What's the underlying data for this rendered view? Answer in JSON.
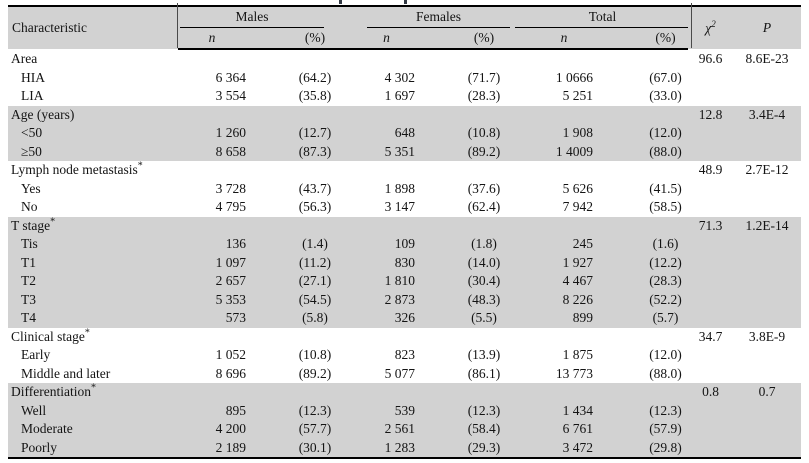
{
  "colors": {
    "band": "#d2d2d2",
    "rule": "#000000",
    "text": "#141414",
    "divider": "#4a4a4a"
  },
  "table": {
    "header": {
      "characteristic": "Characteristic",
      "groups": [
        {
          "label": "Males"
        },
        {
          "label": "Females"
        },
        {
          "label": "Total"
        }
      ],
      "sub_n": "n",
      "sub_pct": "(%)",
      "chi2_base": "χ",
      "chi2_sup": "2",
      "p_label": "P"
    },
    "sections": [
      {
        "id": "area",
        "label": "Area",
        "asterisk": false,
        "shaded": false,
        "chi2": "96.6",
        "p": "8.6E-23",
        "rows": [
          {
            "label": "HIA",
            "m_n": "6 364",
            "m_pct": "(64.2)",
            "f_n": "4 302",
            "f_pct": "(71.7)",
            "t_n": "1 0666",
            "t_pct": "(67.0)"
          },
          {
            "label": "LIA",
            "m_n": "3 554",
            "m_pct": "(35.8)",
            "f_n": "1 697",
            "f_pct": "(28.3)",
            "t_n": "5 251",
            "t_pct": "(33.0)"
          }
        ]
      },
      {
        "id": "age",
        "label": "Age (years)",
        "asterisk": false,
        "shaded": true,
        "chi2": "12.8",
        "p": "3.4E-4",
        "rows": [
          {
            "label": "<50",
            "m_n": "1 260",
            "m_pct": "(12.7)",
            "f_n": "648",
            "f_pct": "(10.8)",
            "t_n": "1 908",
            "t_pct": "(12.0)"
          },
          {
            "label": "≥50",
            "m_n": "8 658",
            "m_pct": "(87.3)",
            "f_n": "5 351",
            "f_pct": "(89.2)",
            "t_n": "1 4009",
            "t_pct": "(88.0)"
          }
        ]
      },
      {
        "id": "lymph-node-metastasis",
        "label": "Lymph node metastasis",
        "asterisk": true,
        "shaded": false,
        "chi2": "48.9",
        "p": "2.7E-12",
        "rows": [
          {
            "label": "Yes",
            "m_n": "3 728",
            "m_pct": "(43.7)",
            "f_n": "1 898",
            "f_pct": "(37.6)",
            "t_n": "5 626",
            "t_pct": "(41.5)"
          },
          {
            "label": "No",
            "m_n": "4 795",
            "m_pct": "(56.3)",
            "f_n": "3 147",
            "f_pct": "(62.4)",
            "t_n": "7 942",
            "t_pct": "(58.5)"
          }
        ]
      },
      {
        "id": "t-stage",
        "label": "T stage",
        "asterisk": true,
        "shaded": true,
        "chi2": "71.3",
        "p": "1.2E-14",
        "rows": [
          {
            "label": "Tis",
            "m_n": "136",
            "m_pct": "(1.4)",
            "f_n": "109",
            "f_pct": "(1.8)",
            "t_n": "245",
            "t_pct": "(1.6)"
          },
          {
            "label": "T1",
            "m_n": "1 097",
            "m_pct": "(11.2)",
            "f_n": "830",
            "f_pct": "(14.0)",
            "t_n": "1 927",
            "t_pct": "(12.2)"
          },
          {
            "label": "T2",
            "m_n": "2 657",
            "m_pct": "(27.1)",
            "f_n": "1 810",
            "f_pct": "(30.4)",
            "t_n": "4 467",
            "t_pct": "(28.3)"
          },
          {
            "label": "T3",
            "m_n": "5 353",
            "m_pct": "(54.5)",
            "f_n": "2 873",
            "f_pct": "(48.3)",
            "t_n": "8 226",
            "t_pct": "(52.2)"
          },
          {
            "label": "T4",
            "m_n": "573",
            "m_pct": "(5.8)",
            "f_n": "326",
            "f_pct": "(5.5)",
            "t_n": "899",
            "t_pct": "(5.7)"
          }
        ]
      },
      {
        "id": "clinical-stage",
        "label": "Clinical stage",
        "asterisk": true,
        "shaded": false,
        "chi2": "34.7",
        "p": "3.8E-9",
        "rows": [
          {
            "label": "Early",
            "m_n": "1 052",
            "m_pct": "(10.8)",
            "f_n": "823",
            "f_pct": "(13.9)",
            "t_n": "1 875",
            "t_pct": "(12.0)"
          },
          {
            "label": "Middle and later",
            "m_n": "8 696",
            "m_pct": "(89.2)",
            "f_n": "5 077",
            "f_pct": "(86.1)",
            "t_n": "13 773",
            "t_pct": "(88.0)"
          }
        ]
      },
      {
        "id": "differentiation",
        "label": "Differentiation",
        "asterisk": true,
        "shaded": true,
        "chi2": "0.8",
        "p": "0.7",
        "rows": [
          {
            "label": "Well",
            "m_n": "895",
            "m_pct": "(12.3)",
            "f_n": "539",
            "f_pct": "(12.3)",
            "t_n": "1 434",
            "t_pct": "(12.3)"
          },
          {
            "label": "Moderate",
            "m_n": "4 200",
            "m_pct": "(57.7)",
            "f_n": "2 561",
            "f_pct": "(58.4)",
            "t_n": "6 761",
            "t_pct": "(57.9)"
          },
          {
            "label": "Poorly",
            "m_n": "2 189",
            "m_pct": "(30.1)",
            "f_n": "1 283",
            "f_pct": "(29.3)",
            "t_n": "3 472",
            "t_pct": "(29.8)"
          }
        ]
      }
    ]
  }
}
